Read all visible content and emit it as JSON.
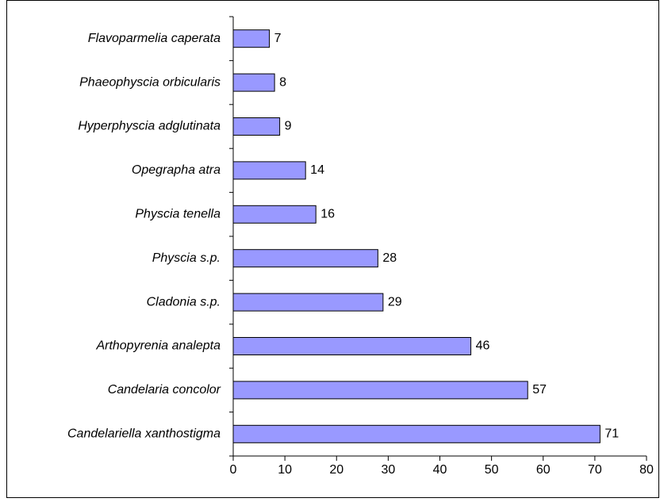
{
  "chart_data": {
    "type": "bar",
    "orientation": "horizontal",
    "categories": [
      "Flavoparmelia caperata",
      "Phaeophyscia orbicularis",
      "Hyperphyscia adglutinata",
      "Opegrapha atra",
      "Physcia tenella",
      "Physcia s.p.",
      "Cladonia s.p.",
      "Arthopyrenia analepta",
      "Candelaria concolor",
      "Candelariella xanthostigma"
    ],
    "values": [
      7,
      8,
      9,
      14,
      16,
      28,
      29,
      46,
      57,
      71
    ],
    "color": "#9999ff",
    "xlim": [
      0,
      80
    ],
    "xticks": [
      0,
      10,
      20,
      30,
      40,
      50,
      60,
      70,
      80
    ],
    "grid": false
  }
}
